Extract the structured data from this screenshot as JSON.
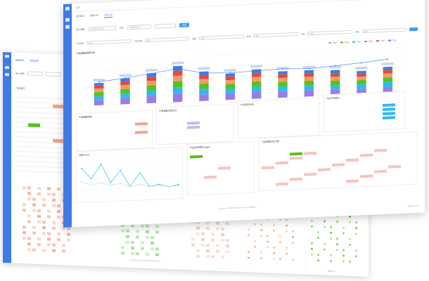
{
  "front": {
    "header": {
      "breadcrumb": "首页",
      "user_name": "admin",
      "tabs": [
        {
          "label": "首页概览"
        },
        {
          "label": "报表分析"
        },
        {
          "label": "产品分析"
        }
      ],
      "active_tab": 2
    },
    "filter_row_1": {
      "label_a": "统计周期",
      "value_a": "日  2023-01-01",
      "label_b": "对比",
      "value_b": "2023-01-02",
      "query_button": "查询"
    },
    "filter_row_2": {
      "fields": [
        "产品名称",
        "全部",
        "产品分类",
        "全部",
        "渠道",
        "全部",
        "区域",
        "全部",
        "门店",
        "全部",
        "时间",
        "全部"
      ],
      "query_button": "查询"
    },
    "main_chart": {
      "title": "产品销售趋势分析",
      "legend": [
        "产品A",
        "产品B",
        "产品C",
        "产品D",
        "产品E",
        "产品F"
      ]
    },
    "panels": [
      {
        "title": "产品销售排名"
      },
      {
        "title": "产品销售分类占比"
      },
      {
        "title": "产品毛利分析"
      },
      {
        "title": "TOP产品排行"
      },
      {
        "title": "月度Trend"
      },
      {
        "title": "产品库存周转 Magic"
      },
      {
        "title": "门店销售对比分析"
      }
    ],
    "footer": "Copyright © 2023 All Rights Reserved 数据中台",
    "footer_right": "数据中台 v2.0"
  },
  "back": {
    "tabs": [
      "数据概览",
      "营销分析"
    ],
    "filter_label": "统计周期",
    "table_title": "门店排行",
    "footer": "Copyright © 2023 All Rights Reserved",
    "footer_right": "数据中台"
  },
  "colors": {
    "accent": "#3f7be6",
    "orange": "#f39a6b",
    "green": "#52c41a",
    "purple": "#9a7be8",
    "cyan": "#35b8ec",
    "red": "#e24b3b"
  },
  "chart_data": [
    {
      "type": "bar",
      "categories": [
        "1",
        "2",
        "3",
        "4",
        "5",
        "6",
        "7",
        "8",
        "9",
        "10",
        "11",
        "12"
      ],
      "series": [
        {
          "values": [
            10,
            12,
            14,
            16,
            13,
            12,
            13,
            12,
            12,
            11,
            11,
            12
          ]
        },
        {
          "values": [
            8,
            9,
            11,
            13,
            11,
            10,
            11,
            10,
            10,
            9,
            9,
            10
          ]
        },
        {
          "values": [
            8,
            9,
            10,
            12,
            10,
            9,
            10,
            9,
            9,
            9,
            8,
            9
          ]
        },
        {
          "values": [
            7,
            8,
            9,
            11,
            9,
            8,
            9,
            8,
            8,
            8,
            7,
            8
          ]
        },
        {
          "values": [
            6,
            7,
            8,
            10,
            8,
            7,
            8,
            7,
            7,
            7,
            6,
            7
          ]
        },
        {
          "values": [
            5,
            6,
            7,
            9,
            7,
            6,
            7,
            6,
            6,
            6,
            5,
            6
          ]
        }
      ],
      "line": [
        52,
        58,
        66,
        74,
        62,
        60,
        62,
        64,
        62,
        66,
        70,
        76
      ],
      "ylim": [
        0,
        100
      ]
    },
    {
      "type": "line",
      "x": [
        "1",
        "2",
        "3",
        "4",
        "5",
        "6",
        "7",
        "8",
        "9",
        "10",
        "11"
      ],
      "series": [
        {
          "values": [
            62,
            40,
            70,
            30,
            55,
            20,
            48,
            18,
            22,
            16,
            20
          ]
        },
        {
          "values": [
            34,
            26,
            30,
            24,
            28,
            20,
            24,
            18,
            20,
            16,
            18
          ]
        }
      ],
      "ylim": [
        0,
        80
      ]
    }
  ]
}
